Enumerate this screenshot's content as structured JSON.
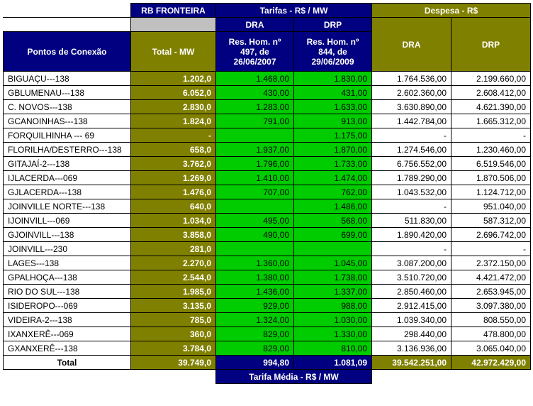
{
  "header": {
    "rb_fronteira": "RB FRONTEIRA",
    "tarifas": "Tarifas - R$ / MW",
    "despesa": "Despesa - R$",
    "pontos": "Pontos de Conexão",
    "total_mw": "Total - MW",
    "dra": "DRA",
    "drp": "DRP",
    "res_dra": "Res. Hom. nº 497, de 26/06/2007",
    "res_drp": "Res. Hom. nº 844, de 29/06/2009"
  },
  "rows": [
    {
      "label": "BIGUAÇU---138",
      "total": "1.202,0",
      "tdra": "1.468,00",
      "tdrp": "1.830,00",
      "ddra": "1.764.536,00",
      "ddrp": "2.199.660,00"
    },
    {
      "label": "GBLUMENAU---138",
      "total": "6.052,0",
      "tdra": "430,00",
      "tdrp": "431,00",
      "ddra": "2.602.360,00",
      "ddrp": "2.608.412,00"
    },
    {
      "label": "C. NOVOS---138",
      "total": "2.830,0",
      "tdra": "1.283,00",
      "tdrp": "1.633,00",
      "ddra": "3.630.890,00",
      "ddrp": "4.621.390,00"
    },
    {
      "label": "GCANOINHAS---138",
      "total": "1.824,0",
      "tdra": "791,00",
      "tdrp": "913,00",
      "ddra": "1.442.784,00",
      "ddrp": "1.665.312,00"
    },
    {
      "label": "FORQUILHINHA --- 69",
      "total": "-",
      "tdra": "",
      "tdrp": "1.175,00",
      "ddra": "-",
      "ddrp": "-"
    },
    {
      "label": "FLORILHA/DESTERRO---138",
      "total": "658,0",
      "tdra": "1.937,00",
      "tdrp": "1.870,00",
      "ddra": "1.274.546,00",
      "ddrp": "1.230.460,00"
    },
    {
      "label": "GITAJAÍ-2---138",
      "total": "3.762,0",
      "tdra": "1.796,00",
      "tdrp": "1.733,00",
      "ddra": "6.756.552,00",
      "ddrp": "6.519.546,00"
    },
    {
      "label": "IJLACERDA---069",
      "total": "1.269,0",
      "tdra": "1.410,00",
      "tdrp": "1.474,00",
      "ddra": "1.789.290,00",
      "ddrp": "1.870.506,00"
    },
    {
      "label": "GJLACERDA---138",
      "total": "1.476,0",
      "tdra": "707,00",
      "tdrp": "762,00",
      "ddra": "1.043.532,00",
      "ddrp": "1.124.712,00"
    },
    {
      "label": "JOINVILLE NORTE---138",
      "total": "640,0",
      "tdra": "",
      "tdrp": "1.486,00",
      "ddra": "-",
      "ddrp": "951.040,00"
    },
    {
      "label": "IJOINVILL---069",
      "total": "1.034,0",
      "tdra": "495,00",
      "tdrp": "568,00",
      "ddra": "511.830,00",
      "ddrp": "587.312,00"
    },
    {
      "label": "GJOINVILL---138",
      "total": "3.858,0",
      "tdra": "490,00",
      "tdrp": "699,00",
      "ddra": "1.890.420,00",
      "ddrp": "2.696.742,00"
    },
    {
      "label": "JOINVILL---230",
      "total": "281,0",
      "tdra": "",
      "tdrp": "",
      "ddra": "-",
      "ddrp": "-"
    },
    {
      "label": "LAGES---138",
      "total": "2.270,0",
      "tdra": "1.360,00",
      "tdrp": "1.045,00",
      "ddra": "3.087.200,00",
      "ddrp": "2.372.150,00"
    },
    {
      "label": "GPALHOÇA---138",
      "total": "2.544,0",
      "tdra": "1.380,00",
      "tdrp": "1.738,00",
      "ddra": "3.510.720,00",
      "ddrp": "4.421.472,00"
    },
    {
      "label": "RIO DO SUL---138",
      "total": "1.985,0",
      "tdra": "1.436,00",
      "tdrp": "1.337,00",
      "ddra": "2.850.460,00",
      "ddrp": "2.653.945,00"
    },
    {
      "label": "ISIDEROPO---069",
      "total": "3.135,0",
      "tdra": "929,00",
      "tdrp": "988,00",
      "ddra": "2.912.415,00",
      "ddrp": "3.097.380,00"
    },
    {
      "label": "VIDEIRA-2---138",
      "total": "785,0",
      "tdra": "1.324,00",
      "tdrp": "1.030,00",
      "ddra": "1.039.340,00",
      "ddrp": "808.550,00"
    },
    {
      "label": "IXANXERÊ---069",
      "total": "360,0",
      "tdra": "829,00",
      "tdrp": "1.330,00",
      "ddra": "298.440,00",
      "ddrp": "478.800,00"
    },
    {
      "label": "GXANXERÊ---138",
      "total": "3.784,0",
      "tdra": "829,00",
      "tdrp": "810,00",
      "ddra": "3.136.936,00",
      "ddrp": "3.065.040,00"
    }
  ],
  "footer": {
    "label": "Total",
    "total": "39.749,0",
    "tdra": "994,80",
    "tdrp": "1.081,09",
    "ddra": "39.542.251,00",
    "ddrp": "42.972.429,00",
    "tarifa_media": "Tarifa Média - R$ / MW"
  },
  "style": {
    "navy": "#000080",
    "olive": "#808000",
    "green": "#00cc00",
    "white": "#ffffff",
    "gray": "#c0c0c0"
  }
}
